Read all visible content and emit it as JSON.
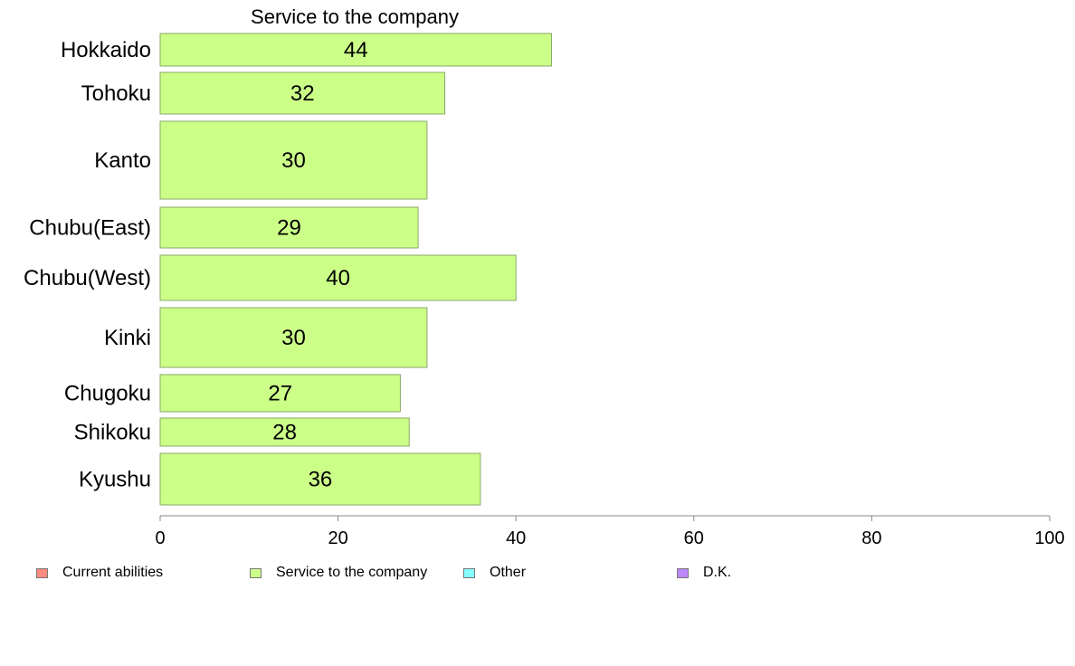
{
  "chart_data": {
    "type": "bar",
    "orientation": "horizontal",
    "title": "Service to the company",
    "categories": [
      "Hokkaido",
      "Tohoku",
      "Kanto",
      "Chubu(East)",
      "Chubu(West)",
      "Kinki",
      "Chugoku",
      "Shikoku",
      "Kyushu"
    ],
    "series": [
      {
        "name": "Service to the company",
        "values": [
          44,
          32,
          30,
          29,
          40,
          30,
          27,
          28,
          36
        ],
        "color": "#ccff88"
      }
    ],
    "data_labels": [
      "44",
      "32",
      "30",
      "29",
      "40",
      "30",
      "27",
      "28",
      "36"
    ],
    "xlim": [
      0,
      100
    ],
    "x_ticks": [
      "0",
      "20",
      "40",
      "60",
      "80",
      "100"
    ],
    "grid": false,
    "legend_position": "bottom",
    "legend": [
      {
        "label": "Current abilities",
        "color": "#ff8a80"
      },
      {
        "label": "Service to the company",
        "color": "#ccff88"
      },
      {
        "label": "Other",
        "color": "#88ffff"
      },
      {
        "label": "D.K.",
        "color": "#bb88ff"
      }
    ]
  }
}
